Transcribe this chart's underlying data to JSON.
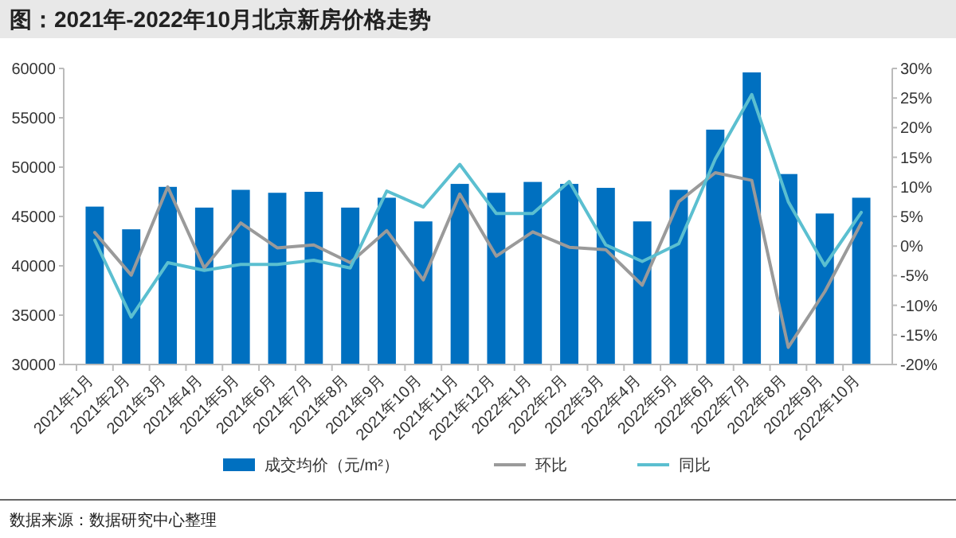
{
  "chart_data": {
    "type": "bar",
    "title": "图：2021年-2022年10月北京新房价格走势",
    "categories": [
      "2021年1月",
      "2021年2月",
      "2021年3月",
      "2021年4月",
      "2021年5月",
      "2021年6月",
      "2021年7月",
      "2021年8月",
      "2021年9月",
      "2021年10月",
      "2021年11月",
      "2021年12月",
      "2022年1月",
      "2022年2月",
      "2022年3月",
      "2022年4月",
      "2022年5月",
      "2022年6月",
      "2022年7月",
      "2022年8月",
      "2022年9月",
      "2022年10月"
    ],
    "series": [
      {
        "name": "成交均价（元/m²）",
        "color": "#0070c0",
        "values": [
          46000,
          43700,
          48000,
          45900,
          47700,
          47400,
          47500,
          45900,
          46900,
          44500,
          48300,
          47400,
          48500,
          48300,
          47900,
          44500,
          47700,
          53800,
          59600,
          49300,
          45300,
          46900
        ]
      },
      {
        "name": "环比",
        "type": "line",
        "axis": "y2",
        "color": "#9a9a9a",
        "values": [
          2.3,
          -4.9,
          10.0,
          -3.7,
          3.9,
          -0.3,
          0.2,
          -2.8,
          2.6,
          -5.7,
          8.8,
          -1.7,
          2.4,
          -0.2,
          -0.6,
          -6.6,
          7.5,
          12.4,
          11.1,
          -17.1,
          -7.7,
          3.9
        ]
      },
      {
        "name": "同比",
        "type": "line",
        "axis": "y2",
        "color": "#5bbfd0",
        "values": [
          1.0,
          -12.0,
          -2.8,
          -4.1,
          -3.1,
          -3.1,
          -2.4,
          -3.7,
          9.3,
          6.6,
          13.8,
          5.5,
          5.5,
          10.9,
          0.2,
          -2.6,
          0.4,
          14.7,
          25.6,
          7.5,
          -3.3,
          5.7
        ]
      }
    ],
    "ylim": [
      30000,
      60000
    ],
    "yticks": [
      30000,
      35000,
      40000,
      45000,
      50000,
      55000,
      60000
    ],
    "y2lim": [
      -20,
      30
    ],
    "y2ticks": [
      {
        "value": -20,
        "label": "-20%"
      },
      {
        "value": -15,
        "label": "-15%"
      },
      {
        "value": -10,
        "label": "-10%"
      },
      {
        "value": -5,
        "label": "-5%"
      },
      {
        "value": 0,
        "label": "0%"
      },
      {
        "value": 5,
        "label": "5%"
      },
      {
        "value": 10,
        "label": "10%"
      },
      {
        "value": 15,
        "label": "15%"
      },
      {
        "value": 20,
        "label": "20%"
      },
      {
        "value": 25,
        "label": "25%"
      },
      {
        "value": 30,
        "label": "30%"
      }
    ],
    "legend": "bottom",
    "marker": "none",
    "line_style": "solid",
    "annotations": [
      "数据来源：数据研究中心整理"
    ]
  }
}
